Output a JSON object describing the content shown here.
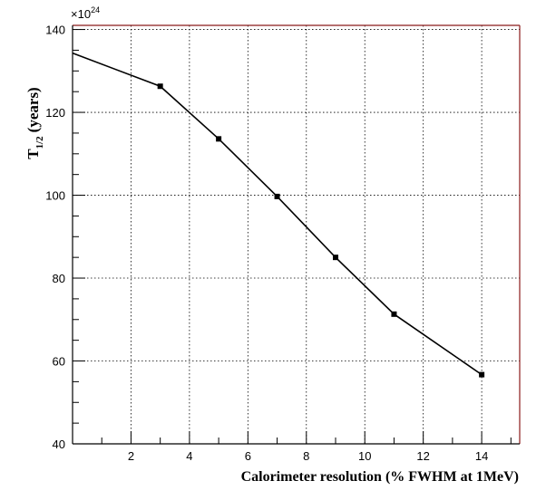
{
  "chart_data": {
    "type": "line",
    "xlabel": "Calorimeter resolution (% FWHM at 1MeV)",
    "ylabel": {
      "main": "T",
      "sub": "1/2",
      "unit": "(years)"
    },
    "y_multiplier": "×10",
    "y_multiplier_exp": "24",
    "xlim": [
      0,
      15.3
    ],
    "ylim": [
      40,
      141
    ],
    "x_ticks": [
      2,
      4,
      6,
      8,
      10,
      12,
      14
    ],
    "y_ticks": [
      40,
      60,
      80,
      100,
      120,
      140
    ],
    "x_tick_labels": [
      "2",
      "4",
      "6",
      "8",
      "10",
      "12",
      "14"
    ],
    "y_tick_labels": [
      "40",
      "60",
      "80",
      "100",
      "120",
      "140"
    ],
    "grid": true,
    "series": [
      {
        "x": [
          0,
          3,
          5,
          7,
          9,
          11,
          14
        ],
        "y": [
          134.3,
          126.3,
          113.6,
          99.7,
          85,
          71.3,
          56.7
        ],
        "marker_shown": [
          false,
          true,
          true,
          true,
          true,
          true,
          true
        ]
      }
    ],
    "colors": {
      "frame_right_top": "#8b1a1a",
      "line": "#000000"
    }
  }
}
